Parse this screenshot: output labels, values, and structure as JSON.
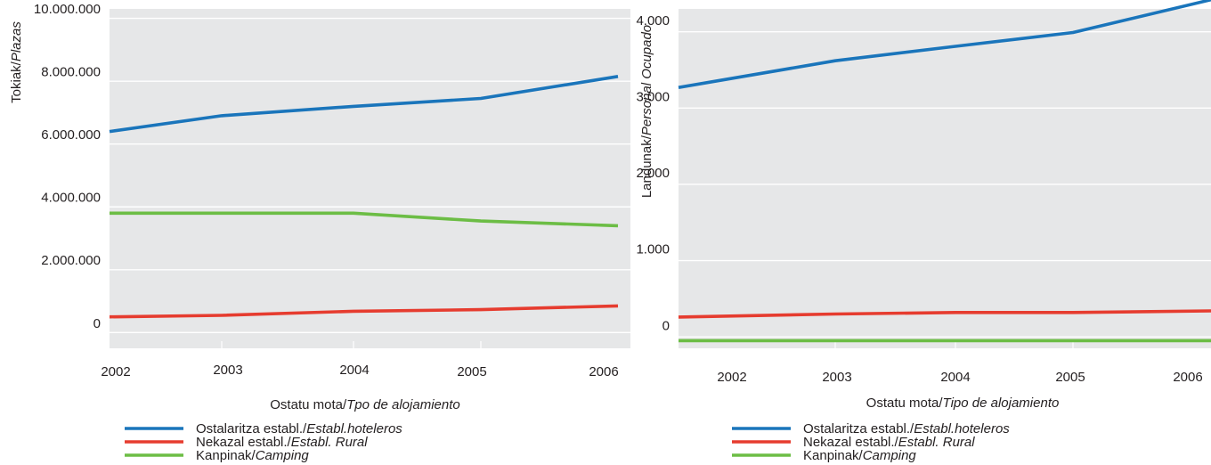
{
  "chart_data": [
    {
      "type": "line",
      "categories": [
        "2002",
        "2003",
        "2004",
        "2005",
        "2006"
      ],
      "ylim": [
        -800000,
        10000000
      ],
      "y_ticks": [
        {
          "value": 0,
          "label": "0"
        },
        {
          "value": 2000000,
          "label": "2.000.000"
        },
        {
          "value": 4000000,
          "label": "4.000.000"
        },
        {
          "value": 6000000,
          "label": "6.000.000"
        },
        {
          "value": 8000000,
          "label": "8.000.000"
        },
        {
          "value": 10000000,
          "label": "10.000.000"
        }
      ],
      "ylabel": {
        "main": "Tokiak/",
        "italic": "Plazas"
      },
      "xlabel": {
        "main": "Ostatu mota/",
        "italic": "Tpo de alojamiento"
      },
      "grid": true,
      "legend_position": "bottom-left",
      "series": [
        {
          "name": "Ostalaritza establ./",
          "name_italic": "Establ.hoteleros",
          "color": "#1a75bb",
          "values": [
            6100000,
            6600000,
            6900000,
            7150000,
            7850000
          ]
        },
        {
          "name": "Nekazal establ./",
          "name_italic": "Establ. Rural",
          "color": "#e63c2f",
          "values": [
            200000,
            250000,
            380000,
            430000,
            550000
          ]
        },
        {
          "name": "Kanpinak/",
          "name_italic": "Camping",
          "color": "#6cbd45",
          "values": [
            3500000,
            3500000,
            3500000,
            3250000,
            3100000
          ]
        }
      ]
    },
    {
      "type": "line",
      "categories": [
        "2002",
        "2003",
        "2004",
        "2005",
        "2006"
      ],
      "ylim": [
        -300,
        4150
      ],
      "y_ticks": [
        {
          "value": 0,
          "label": "0"
        },
        {
          "value": 1000,
          "label": "1.000"
        },
        {
          "value": 2000,
          "label": "2.000"
        },
        {
          "value": 3000,
          "label": "3.000"
        },
        {
          "value": 4000,
          "label": "4.000"
        }
      ],
      "ylabel": {
        "main": "Landunak/",
        "italic": "Personal Ocupado"
      },
      "xlabel": {
        "main": "Ostatu mota/",
        "italic": "Tipo de alojamiento"
      },
      "grid": true,
      "legend_position": "bottom-left",
      "series": [
        {
          "name": "Ostalaritza establ./",
          "name_italic": "Establ.hoteleros",
          "color": "#1a75bb",
          "values": [
            3120,
            3470,
            3660,
            3840,
            4270
          ]
        },
        {
          "name": "Nekazal establ./",
          "name_italic": "Establ. Rural",
          "color": "#e63c2f",
          "values": [
            110,
            150,
            170,
            170,
            190
          ]
        },
        {
          "name": "Kanpinak/",
          "name_italic": "Camping",
          "color": "#6cbd45",
          "values": [
            -200,
            -200,
            -200,
            -200,
            -200
          ]
        }
      ]
    }
  ]
}
